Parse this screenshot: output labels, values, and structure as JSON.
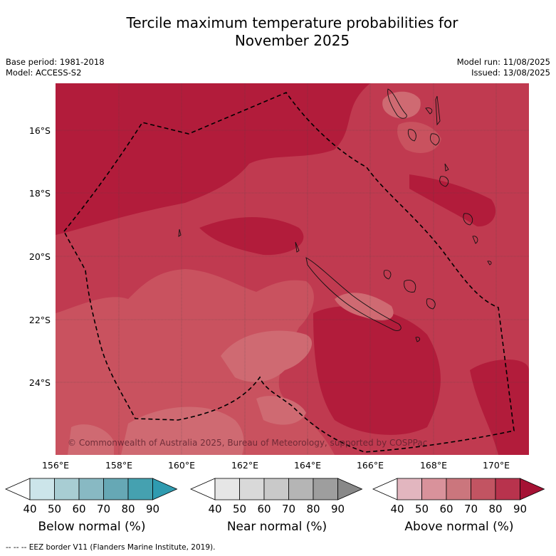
{
  "header": {
    "title_line1": "Tercile maximum temperature probabilities for",
    "title_line2": "November 2025",
    "base_period": "Base period: 1981-2018",
    "model": "Model: ACCESS-S2",
    "model_run": "Model run: 11/08/2025",
    "issued": "Issued: 13/08/2025"
  },
  "map": {
    "lat_labels": [
      "16°S",
      "18°S",
      "20°S",
      "22°S",
      "24°S"
    ],
    "lon_labels": [
      "156°E",
      "158°E",
      "160°E",
      "162°E",
      "164°E",
      "166°E",
      "168°E",
      "170°E"
    ],
    "copyright": "© Commonwealth of Australia 2025, Bureau of Meteorology, supported by COSPPac",
    "colors": {
      "above_90": "#b21c3b",
      "above_80": "#c03a50",
      "above_70": "#c9525f",
      "above_60": "#cf6a72"
    }
  },
  "colorbars": [
    {
      "title": "Below normal (%)",
      "ticks": [
        "40",
        "50",
        "60",
        "70",
        "80",
        "90"
      ],
      "colors": [
        "#ffffff",
        "#cce5ea",
        "#a8cdd3",
        "#88b9c3",
        "#66a8b5",
        "#45a1b0",
        "#2f9bb0"
      ]
    },
    {
      "title": "Near normal (%)",
      "ticks": [
        "40",
        "50",
        "60",
        "70",
        "80",
        "90"
      ],
      "colors": [
        "#ffffff",
        "#e6e6e6",
        "#d9d9d9",
        "#c9c9c9",
        "#b5b5b5",
        "#9e9e9e",
        "#888888"
      ]
    },
    {
      "title": "Above normal (%)",
      "ticks": [
        "40",
        "50",
        "60",
        "70",
        "80",
        "90"
      ],
      "colors": [
        "#ffffff",
        "#e2b6bf",
        "#d9929b",
        "#cb767d",
        "#c25462",
        "#b8334d",
        "#a51234"
      ]
    }
  ],
  "footer": {
    "legend_line": "-- -- -- EEZ border V11 (Flanders Marine Institute, 2019)."
  }
}
